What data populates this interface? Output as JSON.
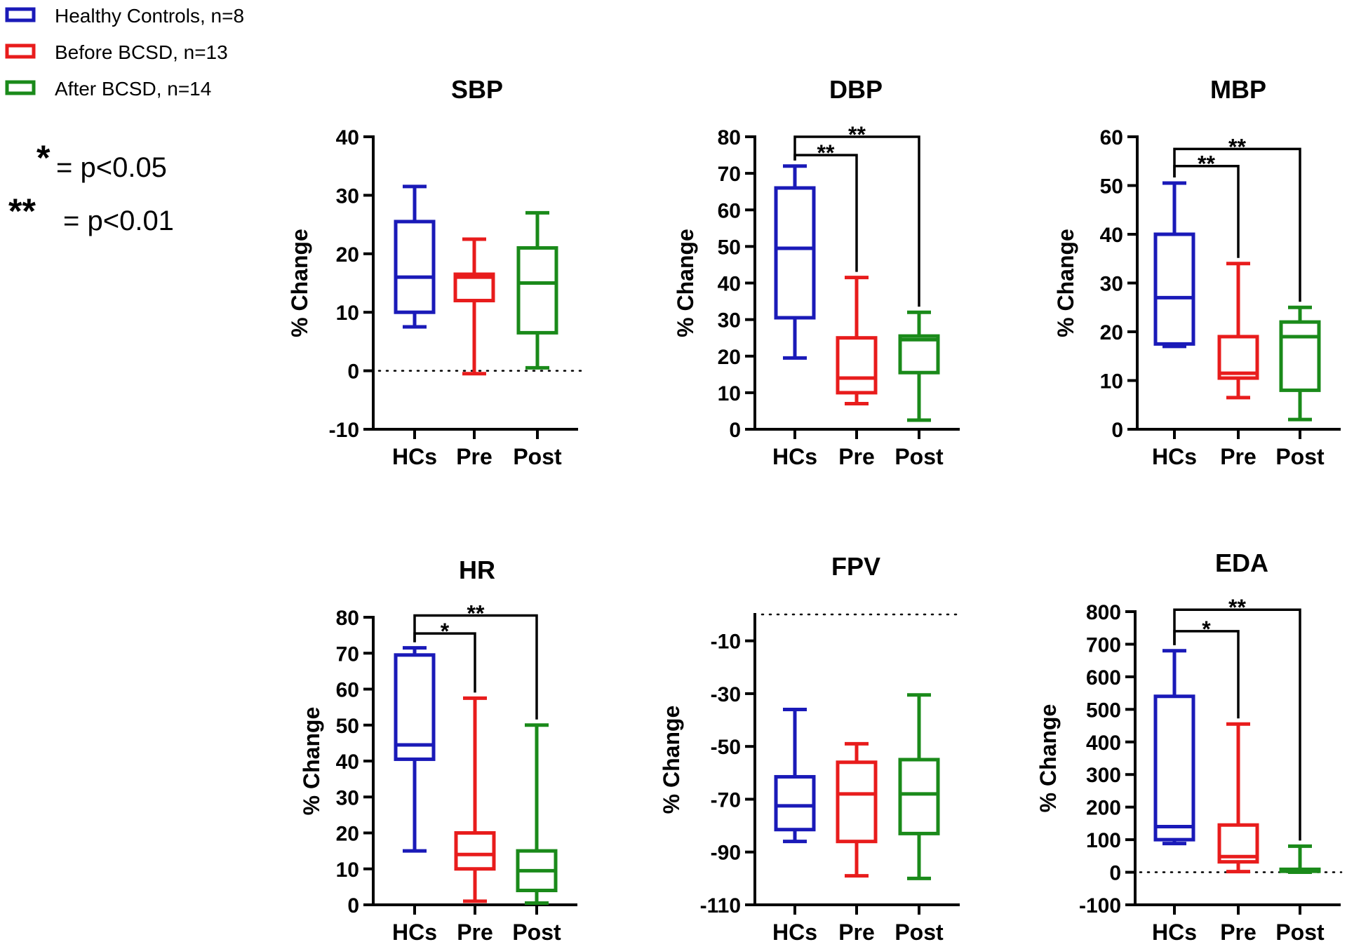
{
  "legend": {
    "entries": [
      {
        "label": "Healthy Controls, n=8",
        "color": "#1a1ab8"
      },
      {
        "label": "Before BCSD, n=13",
        "color": "#e81c1c"
      },
      {
        "label": "After BCSD, n=14",
        "color": "#1a8a1a"
      }
    ],
    "significance": [
      {
        "stars": "*",
        "text": "= p<0.05"
      },
      {
        "stars": "**",
        "text": "= p<0.01"
      }
    ]
  },
  "colors": {
    "axis": "#000000",
    "hc": "#1a1ab8",
    "pre": "#e81c1c",
    "post": "#1a8a1a"
  },
  "chart_data": [
    {
      "type": "box",
      "title": "SBP",
      "ylabel": "% Change",
      "categories": [
        "HCs",
        "Pre",
        "Post"
      ],
      "ylim": [
        -10,
        40
      ],
      "yticks": [
        -10,
        0,
        10,
        20,
        30,
        40
      ],
      "zero_line": true,
      "boxes": [
        {
          "min": 7.5,
          "q1": 10,
          "median": 16,
          "q3": 25.5,
          "max": 31.5
        },
        {
          "min": -0.5,
          "q1": 12,
          "median": 16,
          "q3": 16.5,
          "max": 22.5
        },
        {
          "min": 0.5,
          "q1": 6.5,
          "median": 15,
          "q3": 21,
          "max": 27
        }
      ],
      "brackets": []
    },
    {
      "type": "box",
      "title": "DBP",
      "ylabel": "% Change",
      "categories": [
        "HCs",
        "Pre",
        "Post"
      ],
      "ylim": [
        0,
        80
      ],
      "yticks": [
        0,
        10,
        20,
        30,
        40,
        50,
        60,
        70,
        80
      ],
      "zero_line": false,
      "boxes": [
        {
          "min": 19.5,
          "q1": 30.5,
          "median": 49.5,
          "q3": 66,
          "max": 72
        },
        {
          "min": 7,
          "q1": 10,
          "median": 14,
          "q3": 25,
          "max": 41.5
        },
        {
          "min": 2.5,
          "q1": 15.5,
          "median": 24.5,
          "q3": 25.5,
          "max": 32
        }
      ],
      "brackets": [
        {
          "from": 0,
          "to": 1,
          "stars": "**",
          "y": 75
        },
        {
          "from": 0,
          "to": 2,
          "stars": "**",
          "y": 80
        }
      ]
    },
    {
      "type": "box",
      "title": "MBP",
      "ylabel": "% Change",
      "categories": [
        "HCs",
        "Pre",
        "Post"
      ],
      "ylim": [
        0,
        60
      ],
      "yticks": [
        0,
        10,
        20,
        30,
        40,
        50,
        60
      ],
      "zero_line": false,
      "boxes": [
        {
          "min": 17,
          "q1": 17.5,
          "median": 27,
          "q3": 40,
          "max": 50.5
        },
        {
          "min": 6.5,
          "q1": 10.5,
          "median": 11.5,
          "q3": 19,
          "max": 34
        },
        {
          "min": 2,
          "q1": 8,
          "median": 19,
          "q3": 22,
          "max": 25
        }
      ],
      "brackets": [
        {
          "from": 0,
          "to": 1,
          "stars": "**",
          "y": 54
        },
        {
          "from": 0,
          "to": 2,
          "stars": "**",
          "y": 57.5
        }
      ]
    },
    {
      "type": "box",
      "title": "HR",
      "ylabel": "% Change",
      "categories": [
        "HCs",
        "Pre",
        "Post"
      ],
      "ylim": [
        0,
        80
      ],
      "yticks": [
        0,
        10,
        20,
        30,
        40,
        50,
        60,
        70,
        80
      ],
      "zero_line": false,
      "boxes": [
        {
          "min": 15,
          "q1": 40.5,
          "median": 44.5,
          "q3": 69.5,
          "max": 71.5
        },
        {
          "min": 1,
          "q1": 10,
          "median": 14,
          "q3": 20,
          "max": 57.5
        },
        {
          "min": 0.5,
          "q1": 4,
          "median": 9.5,
          "q3": 15,
          "max": 50
        }
      ],
      "brackets": [
        {
          "from": 0,
          "to": 1,
          "stars": "*",
          "y": 75.5
        },
        {
          "from": 0,
          "to": 2,
          "stars": "**",
          "y": 80.5
        }
      ]
    },
    {
      "type": "box",
      "title": "FPV",
      "ylabel": "% Change",
      "categories": [
        "HCs",
        "Pre",
        "Post"
      ],
      "ylim": [
        -110,
        0
      ],
      "yticks": [
        -110,
        -90,
        -70,
        -50,
        -30,
        -10
      ],
      "zero_line": true,
      "boxes": [
        {
          "min": -86,
          "q1": -81.5,
          "median": -72.5,
          "q3": -61.5,
          "max": -36
        },
        {
          "min": -99,
          "q1": -86,
          "median": -68,
          "q3": -56,
          "max": -49
        },
        {
          "min": -100,
          "q1": -83,
          "median": -68,
          "q3": -55,
          "max": -30.5
        }
      ],
      "brackets": []
    },
    {
      "type": "box",
      "title": "EDA",
      "ylabel": "% Change",
      "categories": [
        "HCs",
        "Pre",
        "Post"
      ],
      "ylim": [
        -100,
        800
      ],
      "yticks": [
        -100,
        0,
        100,
        200,
        300,
        400,
        500,
        600,
        700,
        800
      ],
      "zero_line": true,
      "boxes": [
        {
          "min": 88,
          "q1": 100,
          "median": 140,
          "q3": 540,
          "max": 680
        },
        {
          "min": 2,
          "q1": 32,
          "median": 48,
          "q3": 145,
          "max": 455
        },
        {
          "min": 0,
          "q1": 3,
          "median": 6,
          "q3": 9,
          "max": 80
        }
      ],
      "brackets": [
        {
          "from": 0,
          "to": 1,
          "stars": "*",
          "y": 740
        },
        {
          "from": 0,
          "to": 2,
          "stars": "**",
          "y": 806
        }
      ]
    }
  ]
}
